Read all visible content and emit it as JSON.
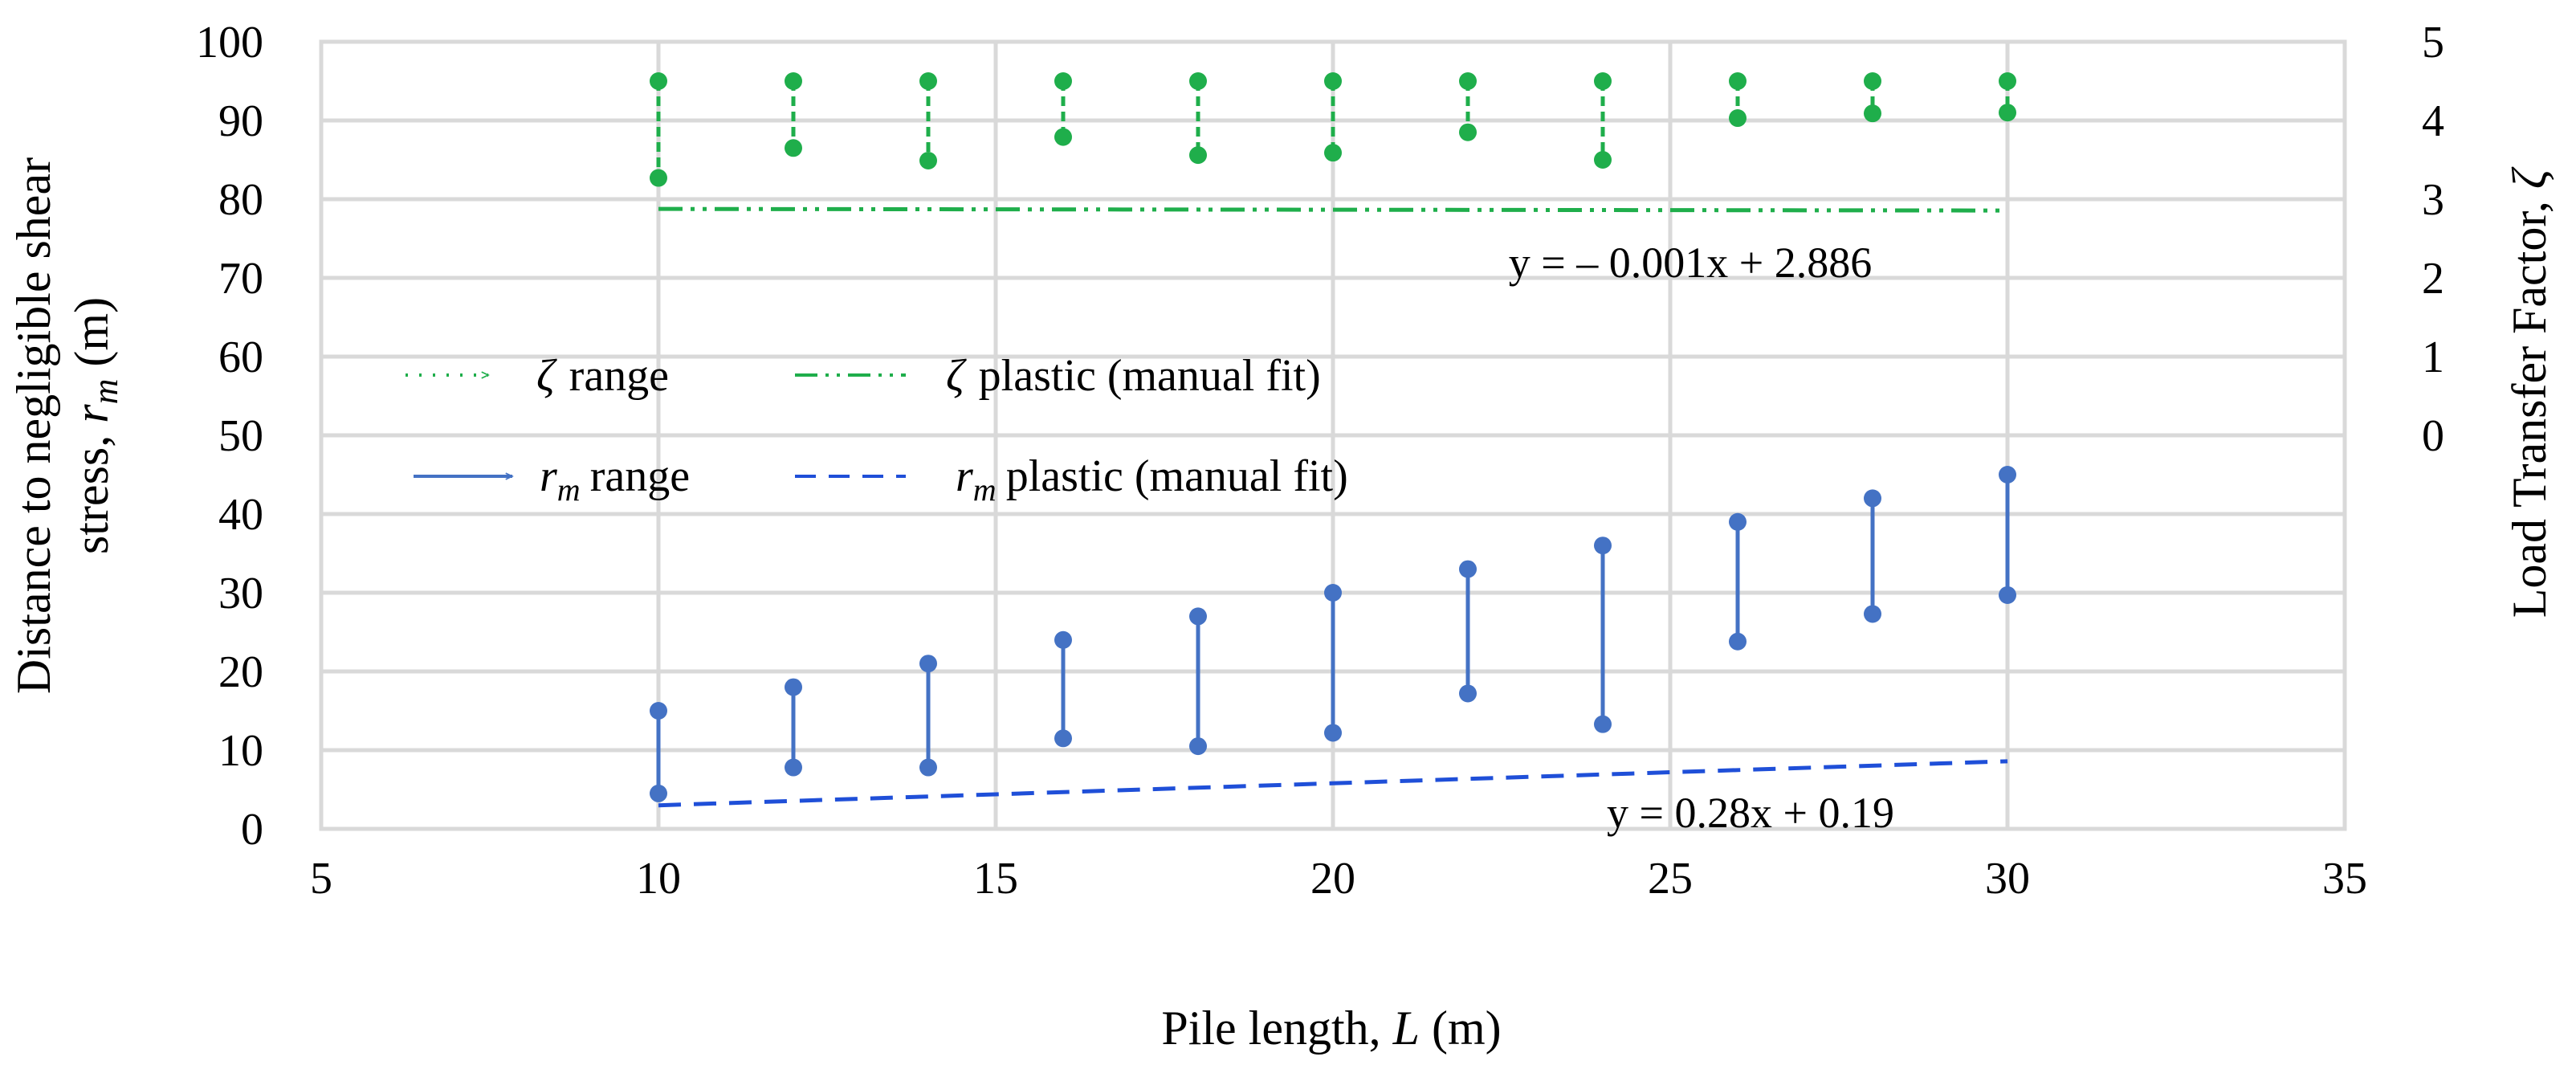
{
  "chart_data": {
    "type": "scatter",
    "xlabel": {
      "prefix": "Pile length, ",
      "var": "L",
      "suffix": " (m)"
    },
    "ylabel_left": {
      "line1": "Distance to negligible shear",
      "prefix": "stress, ",
      "var": "r",
      "sub": "m",
      "suffix": " (m)"
    },
    "ylabel_right": {
      "prefix": "Load Transfer Factor, ",
      "var": "ζ"
    },
    "xlim": [
      5,
      35
    ],
    "ylim_left": [
      0,
      100
    ],
    "ylim_right": [
      -5,
      5
    ],
    "x_ticks": [
      "5",
      "10",
      "15",
      "20",
      "25",
      "30",
      "35"
    ],
    "y_left_ticks": [
      "0",
      "10",
      "20",
      "30",
      "40",
      "50",
      "60",
      "70",
      "80",
      "90",
      "100"
    ],
    "y_right_ticks": [
      "0",
      "1",
      "2",
      "3",
      "4",
      "5"
    ],
    "grid": true,
    "colors": {
      "zeta": "#1fae4b",
      "rm": "#4472c4",
      "rm_fit": "#1f4fd8",
      "grid": "#d9d9d9"
    },
    "series": [
      {
        "name": "ζ range",
        "axis": "right",
        "x": [
          10,
          12,
          14,
          16,
          18,
          20,
          22,
          24,
          26,
          28,
          30
        ],
        "from": [
          4.5,
          4.5,
          4.5,
          4.5,
          4.5,
          4.5,
          4.5,
          4.5,
          4.5,
          4.5,
          4.5
        ],
        "to": [
          3.27,
          3.65,
          3.49,
          3.79,
          3.56,
          3.59,
          3.85,
          3.5,
          4.03,
          4.09,
          4.1
        ]
      },
      {
        "name": "r_m range",
        "axis": "left",
        "x": [
          10,
          12,
          14,
          16,
          18,
          20,
          22,
          24,
          26,
          28,
          30
        ],
        "from": [
          15,
          18,
          21,
          24,
          27,
          30,
          33,
          36,
          39,
          42,
          45
        ],
        "to": [
          4.5,
          7.8,
          7.8,
          11.5,
          10.5,
          12.2,
          17.2,
          13.3,
          23.8,
          27.3,
          29.7
        ]
      },
      {
        "name": "ζ plastic (manual fit)",
        "axis": "right",
        "fit": {
          "slope": -0.001,
          "intercept": 2.886,
          "x_range": [
            10,
            30
          ]
        }
      },
      {
        "name": "r_m plastic (manual fit)",
        "axis": "left",
        "fit": {
          "slope": 0.28,
          "intercept": 0.19,
          "x_range": [
            10,
            30
          ]
        }
      }
    ],
    "legend": [
      {
        "label": "range",
        "var": "ζ",
        "sub": "",
        "style": "zeta-range"
      },
      {
        "label": "plastic (manual fit)",
        "var": "ζ",
        "sub": "",
        "style": "zeta-fit"
      },
      {
        "label": "range",
        "var": "r",
        "sub": "m",
        "style": "rm-range"
      },
      {
        "label": "plastic (manual fit)",
        "var": "r",
        "sub": "m",
        "style": "rm-fit"
      }
    ],
    "annotations": [
      {
        "text": "y = – 0.001x + 2.886",
        "series": "zeta-fit"
      },
      {
        "text": "y = 0.28x + 0.19",
        "series": "rm-fit"
      }
    ]
  }
}
